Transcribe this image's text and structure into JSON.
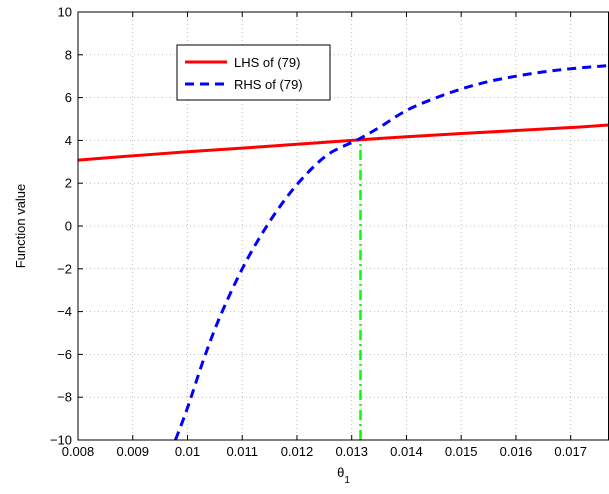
{
  "chart_data": {
    "type": "line",
    "title": "",
    "xlabel": "θ",
    "xlabel_subscript": "1",
    "ylabel": "Function value",
    "xlim": [
      0.008,
      0.0177
    ],
    "ylim": [
      -10,
      10
    ],
    "xticks": [
      0.008,
      0.009,
      0.01,
      0.011,
      0.012,
      0.013,
      0.014,
      0.015,
      0.016,
      0.017
    ],
    "xtick_labels": [
      "0.008",
      "0.009",
      "0.01",
      "0.011",
      "0.012",
      "0.013",
      "0.014",
      "0.015",
      "0.016",
      "0.017"
    ],
    "yticks": [
      -10,
      -8,
      -6,
      -4,
      -2,
      0,
      2,
      4,
      6,
      8,
      10
    ],
    "ytick_labels": [
      "−10",
      "−8",
      "−6",
      "−4",
      "−2",
      "0",
      "2",
      "4",
      "6",
      "8",
      "10"
    ],
    "grid": true,
    "grid_style": "dotted",
    "legend_position": "top-left",
    "series": [
      {
        "name": "LHS of (79)",
        "color": "#ff0000",
        "line_style": "solid",
        "x": [
          0.008,
          0.009,
          0.01,
          0.011,
          0.012,
          0.0131,
          0.014,
          0.015,
          0.016,
          0.017,
          0.0177
        ],
        "y": [
          3.08,
          3.28,
          3.47,
          3.64,
          3.82,
          4.02,
          4.17,
          4.32,
          4.46,
          4.6,
          4.72
        ]
      },
      {
        "name": "RHS of (79)",
        "color": "#0000ff",
        "line_style": "dashed",
        "x": [
          0.00978,
          0.01,
          0.0103,
          0.0106,
          0.011,
          0.0114,
          0.0118,
          0.0122,
          0.0126,
          0.0131,
          0.0135,
          0.014,
          0.0145,
          0.015,
          0.0155,
          0.016,
          0.0165,
          0.017,
          0.0177
        ],
        "y": [
          -10,
          -8.5,
          -6.2,
          -4.2,
          -2.0,
          -0.2,
          1.3,
          2.5,
          3.4,
          4.02,
          4.6,
          5.4,
          5.95,
          6.4,
          6.75,
          7.0,
          7.2,
          7.35,
          7.5
        ]
      }
    ],
    "annotations": [
      {
        "type": "vertical-line",
        "color": "#00ff00",
        "line_style": "dash-dot",
        "x": 0.01316,
        "y_from": -10,
        "y_to": 4.02
      }
    ]
  }
}
